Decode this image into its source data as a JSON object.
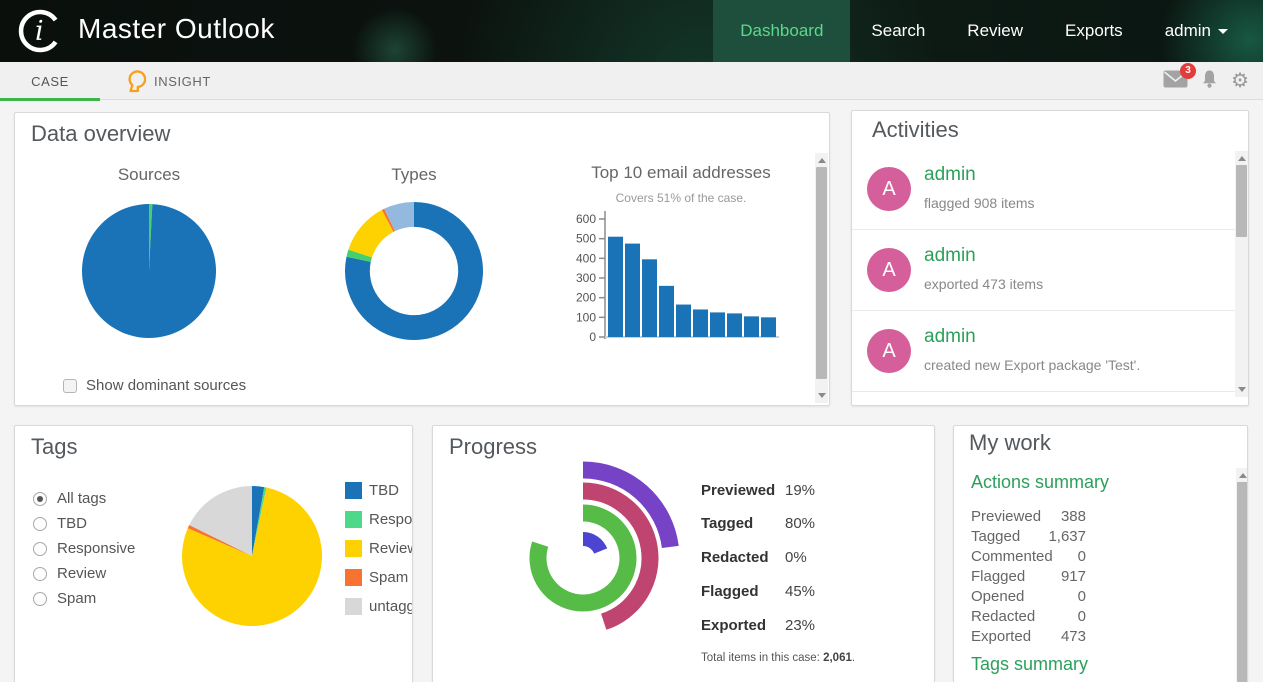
{
  "header": {
    "app_title": "Master Outlook",
    "nav": [
      {
        "label": "Dashboard",
        "active": true
      },
      {
        "label": "Search",
        "active": false
      },
      {
        "label": "Review",
        "active": false
      },
      {
        "label": "Exports",
        "active": false
      }
    ],
    "user": "admin"
  },
  "tabbar": {
    "tabs": [
      {
        "label": "CASE",
        "active": true
      },
      {
        "label": "INSIGHT",
        "active": false
      }
    ],
    "mail_badge": "3",
    "icons": [
      "envelope-icon",
      "bell-icon",
      "gear-icon"
    ]
  },
  "colors": {
    "accent_green": "#2ca05a",
    "nav_active_bg": "#1d4f3c",
    "nav_active_text": "#5fd68d",
    "tab_underline": "#3cb54b",
    "badge_red": "#e23c3c",
    "avatar_pink": "#d55f9b",
    "chart_blue": "#1a73b7"
  },
  "panels": {
    "data_overview": {
      "title": "Data overview",
      "checkbox_label": "Show dominant sources",
      "checkbox_checked": false
    },
    "activities": {
      "title": "Activities",
      "items": [
        {
          "avatar": "A",
          "name": "admin",
          "action": "flagged 908 items"
        },
        {
          "avatar": "A",
          "name": "admin",
          "action": "exported 473 items"
        },
        {
          "avatar": "A",
          "name": "admin",
          "action": "created new Export package 'Test'."
        }
      ]
    },
    "tags": {
      "title": "Tags",
      "radios": [
        {
          "label": "All tags",
          "selected": true
        },
        {
          "label": "TBD",
          "selected": false
        },
        {
          "label": "Responsive",
          "selected": false
        },
        {
          "label": "Review",
          "selected": false
        },
        {
          "label": "Spam",
          "selected": false
        }
      ]
    },
    "progress": {
      "title": "Progress",
      "stats": [
        {
          "label": "Previewed",
          "value": "19%"
        },
        {
          "label": "Tagged",
          "value": "80%"
        },
        {
          "label": "Redacted",
          "value": "0%"
        },
        {
          "label": "Flagged",
          "value": "45%"
        },
        {
          "label": "Exported",
          "value": "23%"
        }
      ],
      "total_label": "Total items in this case: ",
      "total_value": "2,061",
      "total_suffix": "."
    },
    "my_work": {
      "title": "My work",
      "actions_heading": "Actions summary",
      "rows": [
        [
          "Previewed",
          "388"
        ],
        [
          "Tagged",
          "1,637"
        ],
        [
          "Commented",
          "0"
        ],
        [
          "Flagged",
          "917"
        ],
        [
          "Opened",
          "0"
        ],
        [
          "Redacted",
          "0"
        ],
        [
          "Exported",
          "473"
        ]
      ],
      "tags_heading": "Tags summary"
    }
  },
  "chart_data": [
    {
      "id": "sources-pie",
      "type": "pie",
      "title": "Sources",
      "slices": [
        {
          "value": 0.8,
          "color": "#45d06e"
        },
        {
          "value": 99.2,
          "color": "#1a73b7"
        }
      ]
    },
    {
      "id": "types-donut",
      "type": "donut",
      "title": "Types",
      "inner_ratio": 0.64,
      "slices": [
        {
          "value": 78.3,
          "color": "#1a73b7"
        },
        {
          "value": 1.7,
          "color": "#45d06e"
        },
        {
          "value": 12.3,
          "color": "#fdd200"
        },
        {
          "value": 0.6,
          "color": "#f87232"
        },
        {
          "value": 7.1,
          "color": "#93bade"
        }
      ]
    },
    {
      "id": "top10-bar",
      "type": "bar",
      "title": "Top 10 email addresses",
      "subtitle": "Covers 51% of the case.",
      "values": [
        510,
        475,
        395,
        260,
        165,
        140,
        125,
        120,
        105,
        100
      ],
      "ylim": [
        0,
        600
      ],
      "yticks": [
        0,
        100,
        200,
        300,
        400,
        500,
        600
      ],
      "bar_color": "#1a73b7"
    },
    {
      "id": "tags-pie",
      "type": "pie",
      "slices": [
        {
          "label": "TBD",
          "value": 2.8,
          "color": "#1a73b7"
        },
        {
          "label": "Responsive",
          "value": 0.5,
          "color": "#4ed98a"
        },
        {
          "label": "Review",
          "value": 78.2,
          "color": "#fdd200"
        },
        {
          "label": "Spam",
          "value": 0.8,
          "color": "#f87232"
        },
        {
          "label": "untagged",
          "value": 17.7,
          "color": "#d8d8d8"
        }
      ]
    },
    {
      "id": "progress-radial",
      "type": "radial",
      "rings": [
        {
          "label": "Previewed",
          "pct": 19,
          "color": "#4b45d1",
          "r": 19,
          "w": 14
        },
        {
          "label": "Tagged",
          "pct": 80,
          "color": "#56bb47",
          "r": 45,
          "w": 17
        },
        {
          "label": "Redacted",
          "pct": 0,
          "color": "#cccccc",
          "r": 57,
          "w": 8
        },
        {
          "label": "Flagged",
          "pct": 45,
          "color": "#c04470",
          "r": 67,
          "w": 17
        },
        {
          "label": "Exported",
          "pct": 23,
          "color": "#7743c6",
          "r": 88,
          "w": 17
        }
      ]
    }
  ]
}
